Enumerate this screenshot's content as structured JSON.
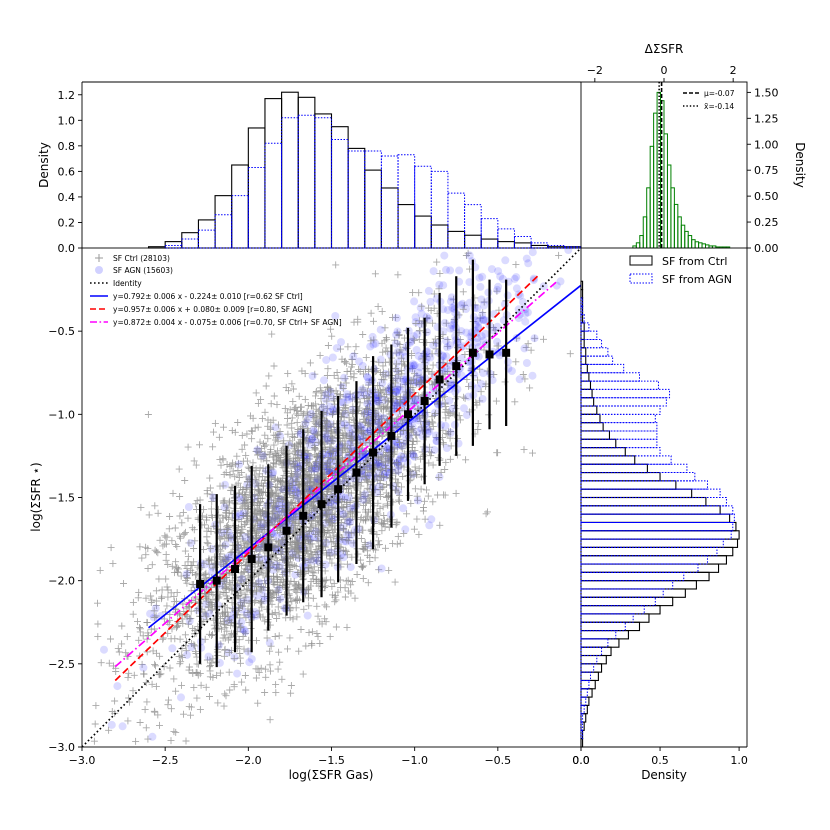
{
  "chart_data": [
    {
      "id": "scatter",
      "type": "scatter",
      "xlabel": "log(ΣSFR Gas)",
      "ylabel": "log(ΣSFR ⋆)",
      "xlim": [
        -3.0,
        0.0
      ],
      "ylim": [
        -3.0,
        0.0
      ],
      "xticks": [
        -3.0,
        -2.5,
        -2.0,
        -1.5,
        -1.0,
        -0.5,
        0.0
      ],
      "xtick_labels": [
        "−3.0",
        "−2.5",
        "−2.0",
        "−1.5",
        "−1.0",
        "−0.5",
        "0.0"
      ],
      "yticks": [
        -3.0,
        -2.5,
        -2.0,
        -1.5,
        -1.0,
        -0.5
      ],
      "ytick_labels": [
        "−3.0",
        "−2.5",
        "−2.0",
        "−1.5",
        "−1.0",
        "−0.5"
      ],
      "series": [
        {
          "name": "SF Ctrl (28103)",
          "marker": "+",
          "color": "#808080"
        },
        {
          "name": "SF AGN (15603)",
          "marker": "o",
          "color": "#0000ff"
        }
      ],
      "binned_medians": {
        "x": [
          -2.29,
          -2.19,
          -2.08,
          -1.98,
          -1.88,
          -1.77,
          -1.67,
          -1.56,
          -1.46,
          -1.35,
          -1.25,
          -1.14,
          -1.04,
          -0.94,
          -0.85,
          -0.75,
          -0.65,
          -0.55,
          -0.45
        ],
        "y": [
          -2.02,
          -2.0,
          -1.93,
          -1.87,
          -1.8,
          -1.7,
          -1.61,
          -1.54,
          -1.45,
          -1.35,
          -1.23,
          -1.13,
          -1.0,
          -0.92,
          -0.79,
          -0.71,
          -0.63,
          -0.64,
          -0.63
        ],
        "yerr": [
          0.48,
          0.52,
          0.5,
          0.56,
          0.5,
          0.51,
          0.52,
          0.56,
          0.56,
          0.55,
          0.58,
          0.55,
          0.52,
          0.5,
          0.52,
          0.54,
          0.56,
          0.45,
          0.44
        ]
      },
      "lines": [
        {
          "name": "Identity",
          "style": "dotted",
          "color": "#000000",
          "x": [
            -3.0,
            0.0
          ],
          "y": [
            -3.0,
            0.0
          ]
        },
        {
          "name": "y=0.792± 0.006 x - 0.224± 0.010  [r=0.62 SF Ctrl]",
          "style": "solid",
          "color": "#0000ff",
          "x": [
            -2.6,
            0.0
          ],
          "y": [
            -2.283,
            -0.224
          ]
        },
        {
          "name": "y=0.957± 0.006 x + 0.080± 0.009  [r=0.80, SF AGN]",
          "style": "dashed",
          "color": "#ff0000",
          "x": [
            -2.8,
            -0.25
          ],
          "y": [
            -2.6,
            -0.159
          ]
        },
        {
          "name": "y=0.872± 0.004 x - 0.075± 0.006  [r=0.70, SF Ctrl+ SF AGN]",
          "style": "dashdot",
          "color": "#ff00ff",
          "x": [
            -2.8,
            -0.15
          ],
          "y": [
            -2.517,
            -0.206
          ]
        }
      ]
    },
    {
      "id": "top_hist",
      "type": "bar",
      "ylabel": "Density",
      "ylim": [
        0,
        1.3
      ],
      "yticks": [
        0.0,
        0.2,
        0.4,
        0.6,
        0.8,
        1.0,
        1.2
      ],
      "ytick_labels": [
        "0.0",
        "0.2",
        "0.4",
        "0.6",
        "0.8",
        "1.0",
        "1.2"
      ],
      "bin_edges": [
        -2.6,
        -2.5,
        -2.4,
        -2.3,
        -2.2,
        -2.1,
        -2.0,
        -1.9,
        -1.8,
        -1.7,
        -1.6,
        -1.5,
        -1.4,
        -1.3,
        -1.2,
        -1.1,
        -1.0,
        -0.9,
        -0.8,
        -0.7,
        -0.6,
        -0.5,
        -0.4,
        -0.3,
        -0.2,
        -0.1,
        0.0
      ],
      "series": [
        {
          "name": "SF from Ctrl",
          "style": "solid",
          "color": "#000000",
          "values": [
            0.01,
            0.05,
            0.12,
            0.22,
            0.41,
            0.65,
            0.94,
            1.17,
            1.22,
            1.18,
            1.05,
            0.95,
            0.78,
            0.61,
            0.47,
            0.34,
            0.25,
            0.18,
            0.13,
            0.1,
            0.07,
            0.05,
            0.04,
            0.02,
            0.01,
            0.01
          ]
        },
        {
          "name": "SF from AGN",
          "style": "dotted",
          "color": "#0000ff",
          "values": [
            0.0,
            0.02,
            0.07,
            0.14,
            0.26,
            0.41,
            0.63,
            0.82,
            1.02,
            1.04,
            1.02,
            0.85,
            0.76,
            0.76,
            0.72,
            0.73,
            0.64,
            0.6,
            0.43,
            0.34,
            0.23,
            0.15,
            0.09,
            0.04,
            0.02,
            0.01
          ]
        }
      ]
    },
    {
      "id": "right_hist",
      "type": "bar",
      "orientation": "horizontal",
      "xlabel": "Density",
      "xlim": [
        0,
        1.05
      ],
      "xticks": [
        0.0,
        0.5,
        1.0
      ],
      "xtick_labels": [
        "0.0",
        "0.5",
        "1.0"
      ],
      "bin_edges": [
        -3.0,
        -2.95,
        -2.9,
        -2.85,
        -2.8,
        -2.75,
        -2.7,
        -2.65,
        -2.6,
        -2.55,
        -2.5,
        -2.45,
        -2.4,
        -2.35,
        -2.3,
        -2.25,
        -2.2,
        -2.15,
        -2.1,
        -2.05,
        -2.0,
        -1.95,
        -1.9,
        -1.85,
        -1.8,
        -1.75,
        -1.7,
        -1.65,
        -1.6,
        -1.55,
        -1.5,
        -1.45,
        -1.4,
        -1.35,
        -1.3,
        -1.25,
        -1.2,
        -1.15,
        -1.1,
        -1.05,
        -1.0,
        -0.95,
        -0.9,
        -0.85,
        -0.8,
        -0.75,
        -0.7,
        -0.65,
        -0.6,
        -0.55,
        -0.5,
        -0.45,
        -0.4,
        -0.35,
        -0.3,
        -0.25,
        -0.2,
        -0.15,
        -0.1,
        -0.05,
        0.0
      ],
      "series": [
        {
          "name": "SF from Ctrl",
          "style": "solid",
          "color": "#000000",
          "values": [
            0.01,
            0.01,
            0.02,
            0.03,
            0.04,
            0.05,
            0.07,
            0.09,
            0.11,
            0.13,
            0.16,
            0.19,
            0.24,
            0.3,
            0.37,
            0.43,
            0.5,
            0.58,
            0.66,
            0.73,
            0.81,
            0.87,
            0.92,
            0.96,
            0.99,
            1.0,
            0.98,
            0.94,
            0.88,
            0.79,
            0.7,
            0.6,
            0.5,
            0.42,
            0.34,
            0.28,
            0.22,
            0.18,
            0.14,
            0.12,
            0.1,
            0.08,
            0.07,
            0.06,
            0.05,
            0.04,
            0.03,
            0.03,
            0.02,
            0.02,
            0.02,
            0.01,
            0.01,
            0.01,
            0.01,
            0.01,
            0.0,
            0.0,
            0.0,
            0.0
          ]
        },
        {
          "name": "SF from AGN",
          "style": "dotted",
          "color": "#0000ff",
          "values": [
            0.0,
            0.01,
            0.01,
            0.01,
            0.02,
            0.03,
            0.04,
            0.05,
            0.06,
            0.08,
            0.1,
            0.13,
            0.17,
            0.22,
            0.28,
            0.33,
            0.4,
            0.47,
            0.52,
            0.58,
            0.65,
            0.74,
            0.8,
            0.86,
            0.9,
            0.95,
            0.96,
            0.97,
            0.96,
            0.92,
            0.88,
            0.8,
            0.72,
            0.67,
            0.57,
            0.5,
            0.48,
            0.48,
            0.48,
            0.47,
            0.5,
            0.54,
            0.56,
            0.49,
            0.37,
            0.27,
            0.2,
            0.17,
            0.13,
            0.1,
            0.05,
            0.02,
            0.01,
            0.01,
            0.0,
            0.0,
            0.0,
            0.0,
            0.0,
            0.0
          ]
        }
      ]
    },
    {
      "id": "delta_hist",
      "type": "bar",
      "title": "ΔΣSFR",
      "ylabel": "Density",
      "xlim": [
        -2.4,
        2.4
      ],
      "ylim": [
        0,
        1.6
      ],
      "xticks": [
        -2,
        0,
        2
      ],
      "xtick_labels": [
        "−2",
        "0",
        "2"
      ],
      "yticks": [
        0.0,
        0.25,
        0.5,
        0.75,
        1.0,
        1.25,
        1.5
      ],
      "ytick_labels": [
        "0.00",
        "0.25",
        "0.50",
        "0.75",
        "1.00",
        "1.25",
        "1.50"
      ],
      "bin_edges": [
        -0.9,
        -0.8,
        -0.7,
        -0.6,
        -0.5,
        -0.4,
        -0.3,
        -0.2,
        -0.1,
        0.0,
        0.1,
        0.2,
        0.3,
        0.4,
        0.5,
        0.6,
        0.7,
        0.8,
        0.9,
        1.0,
        1.1,
        1.2,
        1.3,
        1.4,
        1.5,
        1.6,
        1.7,
        1.8,
        1.9
      ],
      "series": [
        {
          "name": "ΔΣSFR",
          "style": "solid",
          "color": "#008000",
          "values": [
            0.02,
            0.05,
            0.12,
            0.3,
            0.58,
            0.98,
            1.3,
            1.5,
            1.42,
            1.1,
            0.8,
            0.58,
            0.42,
            0.3,
            0.22,
            0.16,
            0.12,
            0.08,
            0.06,
            0.05,
            0.04,
            0.03,
            0.02,
            0.02,
            0.01,
            0.01,
            0.01,
            0.01
          ]
        }
      ],
      "vlines": [
        {
          "label": "μ=-0.07",
          "x": -0.07,
          "style": "dashed"
        },
        {
          "label": "x̃=-0.14",
          "x": -0.14,
          "style": "dotted"
        }
      ]
    }
  ],
  "legend_right": [
    {
      "label": "SF from Ctrl",
      "style": "solid",
      "color": "#000000"
    },
    {
      "label": "SF from AGN",
      "style": "dotted",
      "color": "#0000ff"
    }
  ]
}
